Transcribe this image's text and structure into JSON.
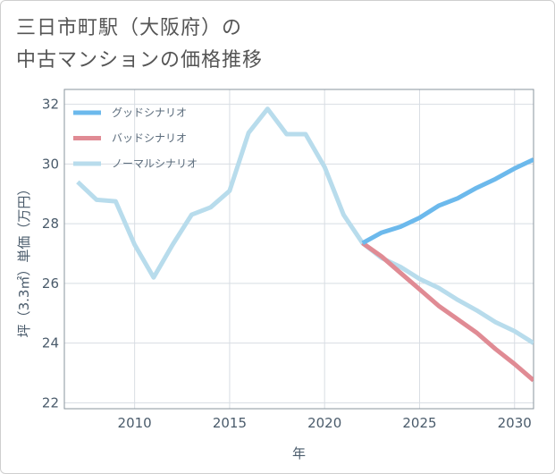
{
  "title_line1": "三日市町駅（大阪府）の",
  "title_line2": "中古マンションの価格推移",
  "chart_data": {
    "type": "line",
    "xlabel": "年",
    "ylabel": "坪（3.3㎡）単価（万円）",
    "xlim": [
      2006.3,
      2031
    ],
    "ylim": [
      21.8,
      32.5
    ],
    "xticks": [
      2010,
      2015,
      2020,
      2025,
      2030
    ],
    "yticks": [
      22,
      24,
      26,
      28,
      30,
      32
    ],
    "legend_position": "top-left",
    "series": [
      {
        "name": "グッドシナリオ",
        "color": "#6cb9ec",
        "x": [
          2022,
          2023,
          2024,
          2025,
          2026,
          2027,
          2028,
          2029,
          2030,
          2031
        ],
        "y": [
          27.35,
          27.7,
          27.9,
          28.2,
          28.6,
          28.85,
          29.2,
          29.5,
          29.85,
          30.15
        ]
      },
      {
        "name": "バッドシナリオ",
        "color": "#e08b94",
        "x": [
          2022,
          2023,
          2024,
          2025,
          2026,
          2027,
          2028,
          2029,
          2030,
          2031
        ],
        "y": [
          27.35,
          26.9,
          26.35,
          25.8,
          25.25,
          24.8,
          24.35,
          23.8,
          23.3,
          22.75
        ]
      },
      {
        "name": "ノーマルシナリオ",
        "color": "#b8dcec",
        "x": [
          2007,
          2008,
          2009,
          2010,
          2011,
          2012,
          2013,
          2014,
          2015,
          2016,
          2017,
          2018,
          2019,
          2020,
          2021,
          2022,
          2023,
          2024,
          2025,
          2026,
          2027,
          2028,
          2029,
          2030,
          2031
        ],
        "y": [
          29.4,
          28.8,
          28.75,
          27.3,
          26.2,
          27.3,
          28.3,
          28.55,
          29.1,
          31.05,
          31.85,
          31.0,
          31.0,
          29.9,
          28.3,
          27.35,
          26.85,
          26.55,
          26.15,
          25.85,
          25.45,
          25.1,
          24.7,
          24.4,
          24.0
        ]
      }
    ]
  }
}
